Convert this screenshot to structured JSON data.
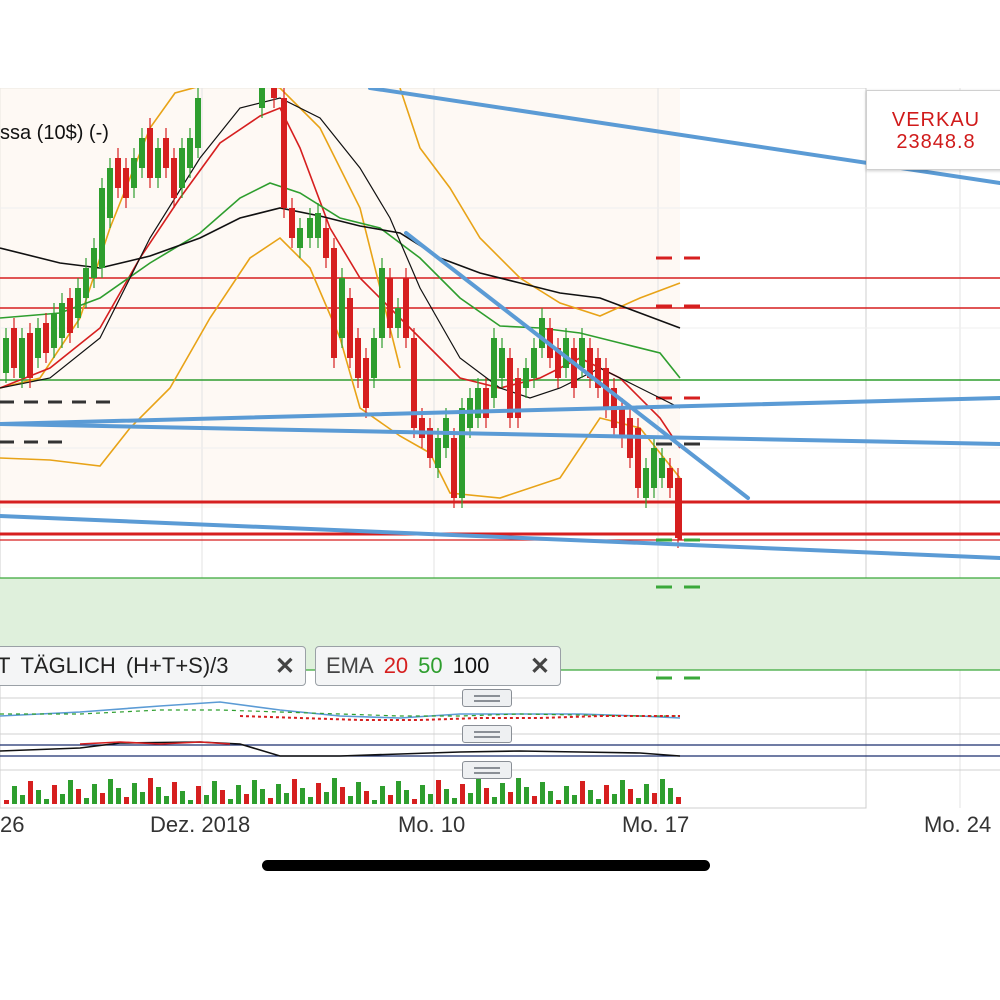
{
  "chart_data": {
    "type": "candlestick",
    "title": "",
    "xlabel": "",
    "ylabel": "",
    "x_ticks": [
      "26",
      "Dez. 2018",
      "Mo. 10",
      "Mo. 17",
      "Mo. 24"
    ],
    "grid": true,
    "candles_shown": 48,
    "volume_colors": [
      "#2e9e2e",
      "#d61f1f"
    ]
  },
  "instrument_label": "ssa (10$) (-)",
  "sell_box": {
    "line1": "VERKAU",
    "line2": "23848.8"
  },
  "indicator_chips": {
    "typical_price": {
      "prefix": "T",
      "label": "TÄGLICH",
      "formula": "(H+T+S)/3",
      "close": "✕"
    },
    "ema": {
      "label": "EMA",
      "p1": "20",
      "p2": "50",
      "p3": "100",
      "close": "✕"
    }
  },
  "colors": {
    "up": "#2e9e2e",
    "down": "#d61f1f",
    "trend": "#5b9bd5",
    "bollinger": "#e8a317",
    "ema20": "#d61f1f",
    "ema50": "#2e9e2e",
    "ema100": "#111111",
    "zone": "#dff0dc"
  },
  "icons": [
    "close-icon",
    "drag-handle-icon"
  ]
}
